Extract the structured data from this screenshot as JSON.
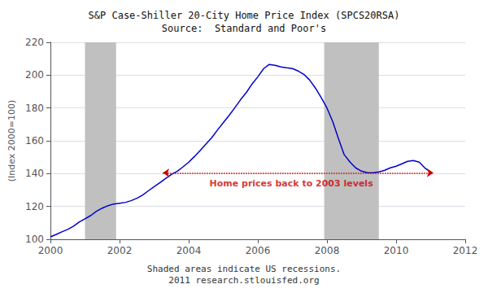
{
  "chart_data": {
    "type": "line",
    "title": "S&P Case-Shiller 20-City Home Price Index (SPCS20RSA)\nSource:  Standard and Poor's",
    "y_label": "(Index 2000=100)",
    "footer": [
      "Shaded areas indicate US recessions.",
      "2011 research.stlouisfed.org"
    ],
    "x": [
      2000.0,
      2000.17,
      2000.33,
      2000.5,
      2000.67,
      2000.83,
      2001.0,
      2001.17,
      2001.33,
      2001.5,
      2001.67,
      2001.83,
      2002.0,
      2002.17,
      2002.33,
      2002.5,
      2002.67,
      2002.83,
      2003.0,
      2003.17,
      2003.33,
      2003.5,
      2003.67,
      2003.83,
      2004.0,
      2004.17,
      2004.33,
      2004.5,
      2004.67,
      2004.83,
      2005.0,
      2005.17,
      2005.33,
      2005.5,
      2005.67,
      2005.83,
      2006.0,
      2006.17,
      2006.33,
      2006.5,
      2006.67,
      2006.83,
      2007.0,
      2007.17,
      2007.33,
      2007.5,
      2007.67,
      2007.83,
      2008.0,
      2008.17,
      2008.33,
      2008.5,
      2008.67,
      2008.83,
      2009.0,
      2009.17,
      2009.33,
      2009.5,
      2009.67,
      2009.83,
      2010.0,
      2010.17,
      2010.33,
      2010.5,
      2010.67,
      2010.83,
      2011.0
    ],
    "values": [
      101.5,
      103.0,
      104.5,
      106.0,
      108.0,
      110.5,
      112.5,
      114.5,
      117.0,
      119.0,
      120.5,
      121.5,
      122.0,
      122.5,
      123.5,
      125.0,
      127.0,
      129.5,
      132.0,
      134.5,
      137.0,
      139.5,
      141.5,
      144.0,
      147.0,
      150.5,
      154.0,
      158.0,
      162.0,
      166.5,
      171.0,
      175.5,
      180.0,
      185.0,
      189.5,
      194.5,
      199.0,
      204.0,
      206.5,
      206.0,
      205.0,
      204.5,
      204.0,
      202.5,
      200.5,
      197.0,
      192.0,
      186.5,
      180.0,
      171.5,
      161.5,
      151.5,
      147.0,
      143.5,
      141.5,
      140.5,
      140.5,
      141.0,
      142.0,
      143.5,
      144.5,
      146.0,
      147.5,
      148.0,
      147.0,
      143.5,
      141.0
    ],
    "color": "#0000cc",
    "recessions": {
      "color": "#c0c0c0",
      "ranges": [
        [
          2001.0,
          2001.9
        ],
        [
          2007.92,
          2009.5
        ]
      ]
    },
    "arrow": {
      "x_start": 2003.25,
      "x_end": 2011.08,
      "y": 140.5,
      "color": "#cc0000",
      "line_style": "dotted"
    },
    "annotations": [
      {
        "text": "Home prices back to 2003 levels",
        "x": 2004.6,
        "y": 131,
        "color": "#cc0000"
      }
    ],
    "xlim": [
      2000,
      2012
    ],
    "xticks": [
      2000,
      2002,
      2004,
      2006,
      2008,
      2010,
      2012
    ],
    "ylim": [
      100,
      220
    ],
    "yticks": [
      100,
      120,
      140,
      160,
      180,
      200,
      220
    ],
    "grid": true
  }
}
